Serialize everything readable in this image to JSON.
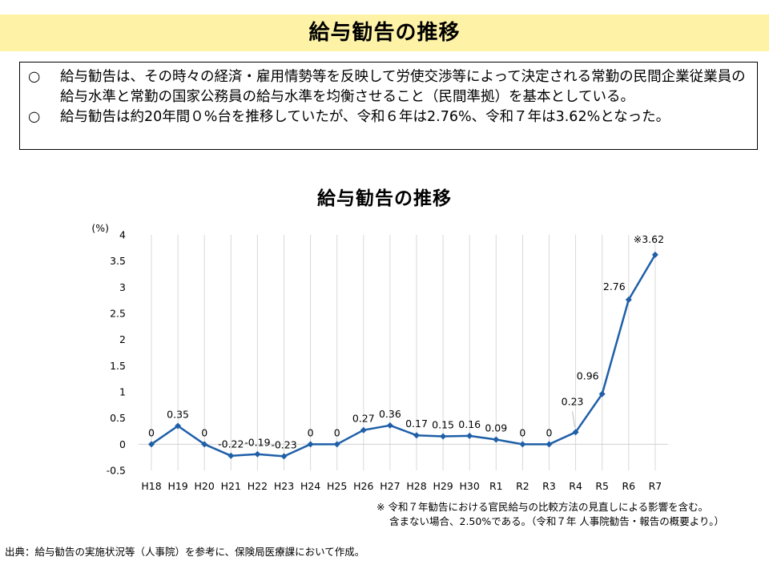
{
  "banner": {
    "title": "給与勧告の推移"
  },
  "summary": {
    "bullets": [
      {
        "mark": "○",
        "text": "給与勧告は、その時々の経済・雇用情勢等を反映して労使交渉等によって決定される常勤の民間企業従業員の給与水準と常勤の国家公務員の給与水準を均衡させること（民間準拠）を基本としている。"
      },
      {
        "mark": "○",
        "text": "給与勧告は約20年間０%台を推移していたが、令和６年は2.76%、令和７年は3.62%となった。"
      }
    ]
  },
  "chart_data": {
    "type": "line",
    "title": "給与勧告の推移",
    "ylabel": "(%)",
    "xlabel": "",
    "ylim": [
      -0.5,
      4
    ],
    "yticks": [
      "4",
      "3.5",
      "3",
      "2.5",
      "2",
      "1.5",
      "1",
      "0.5",
      "0",
      "-0.5"
    ],
    "grid": "vertical",
    "legend": "none",
    "line_color": "#1f5fa8",
    "categories": [
      "H18",
      "H19",
      "H20",
      "H21",
      "H22",
      "H23",
      "H24",
      "H25",
      "H26",
      "H27",
      "H28",
      "H29",
      "H30",
      "R1",
      "R2",
      "R3",
      "R4",
      "R5",
      "R6",
      "R7"
    ],
    "series": [
      {
        "values": [
          0,
          0.35,
          0,
          -0.22,
          -0.19,
          -0.23,
          0,
          0,
          0.27,
          0.36,
          0.17,
          0.15,
          0.16,
          0.09,
          0,
          0,
          0.23,
          0.96,
          2.76,
          3.62
        ],
        "labels": [
          "0",
          "0.35",
          "0",
          "-0.22",
          "-0.19",
          "-0.23",
          "0",
          "0",
          "0.27",
          "0.36",
          "0.17",
          "0.15",
          "0.16",
          "0.09",
          "0",
          "0",
          "0.23",
          "0.96",
          "2.76",
          "※3.62"
        ]
      }
    ]
  },
  "note": {
    "line1": "※ 令和７年勧告における官民給与の比較方法の見直しによる影響を含む。",
    "line2": "含まない場合、2.50%である。（令和７年 人事院勧告・報告の概要より。）"
  },
  "source": "出典：給与勧告の実施状況等（人事院）を参考に、保険局医療課において作成。"
}
